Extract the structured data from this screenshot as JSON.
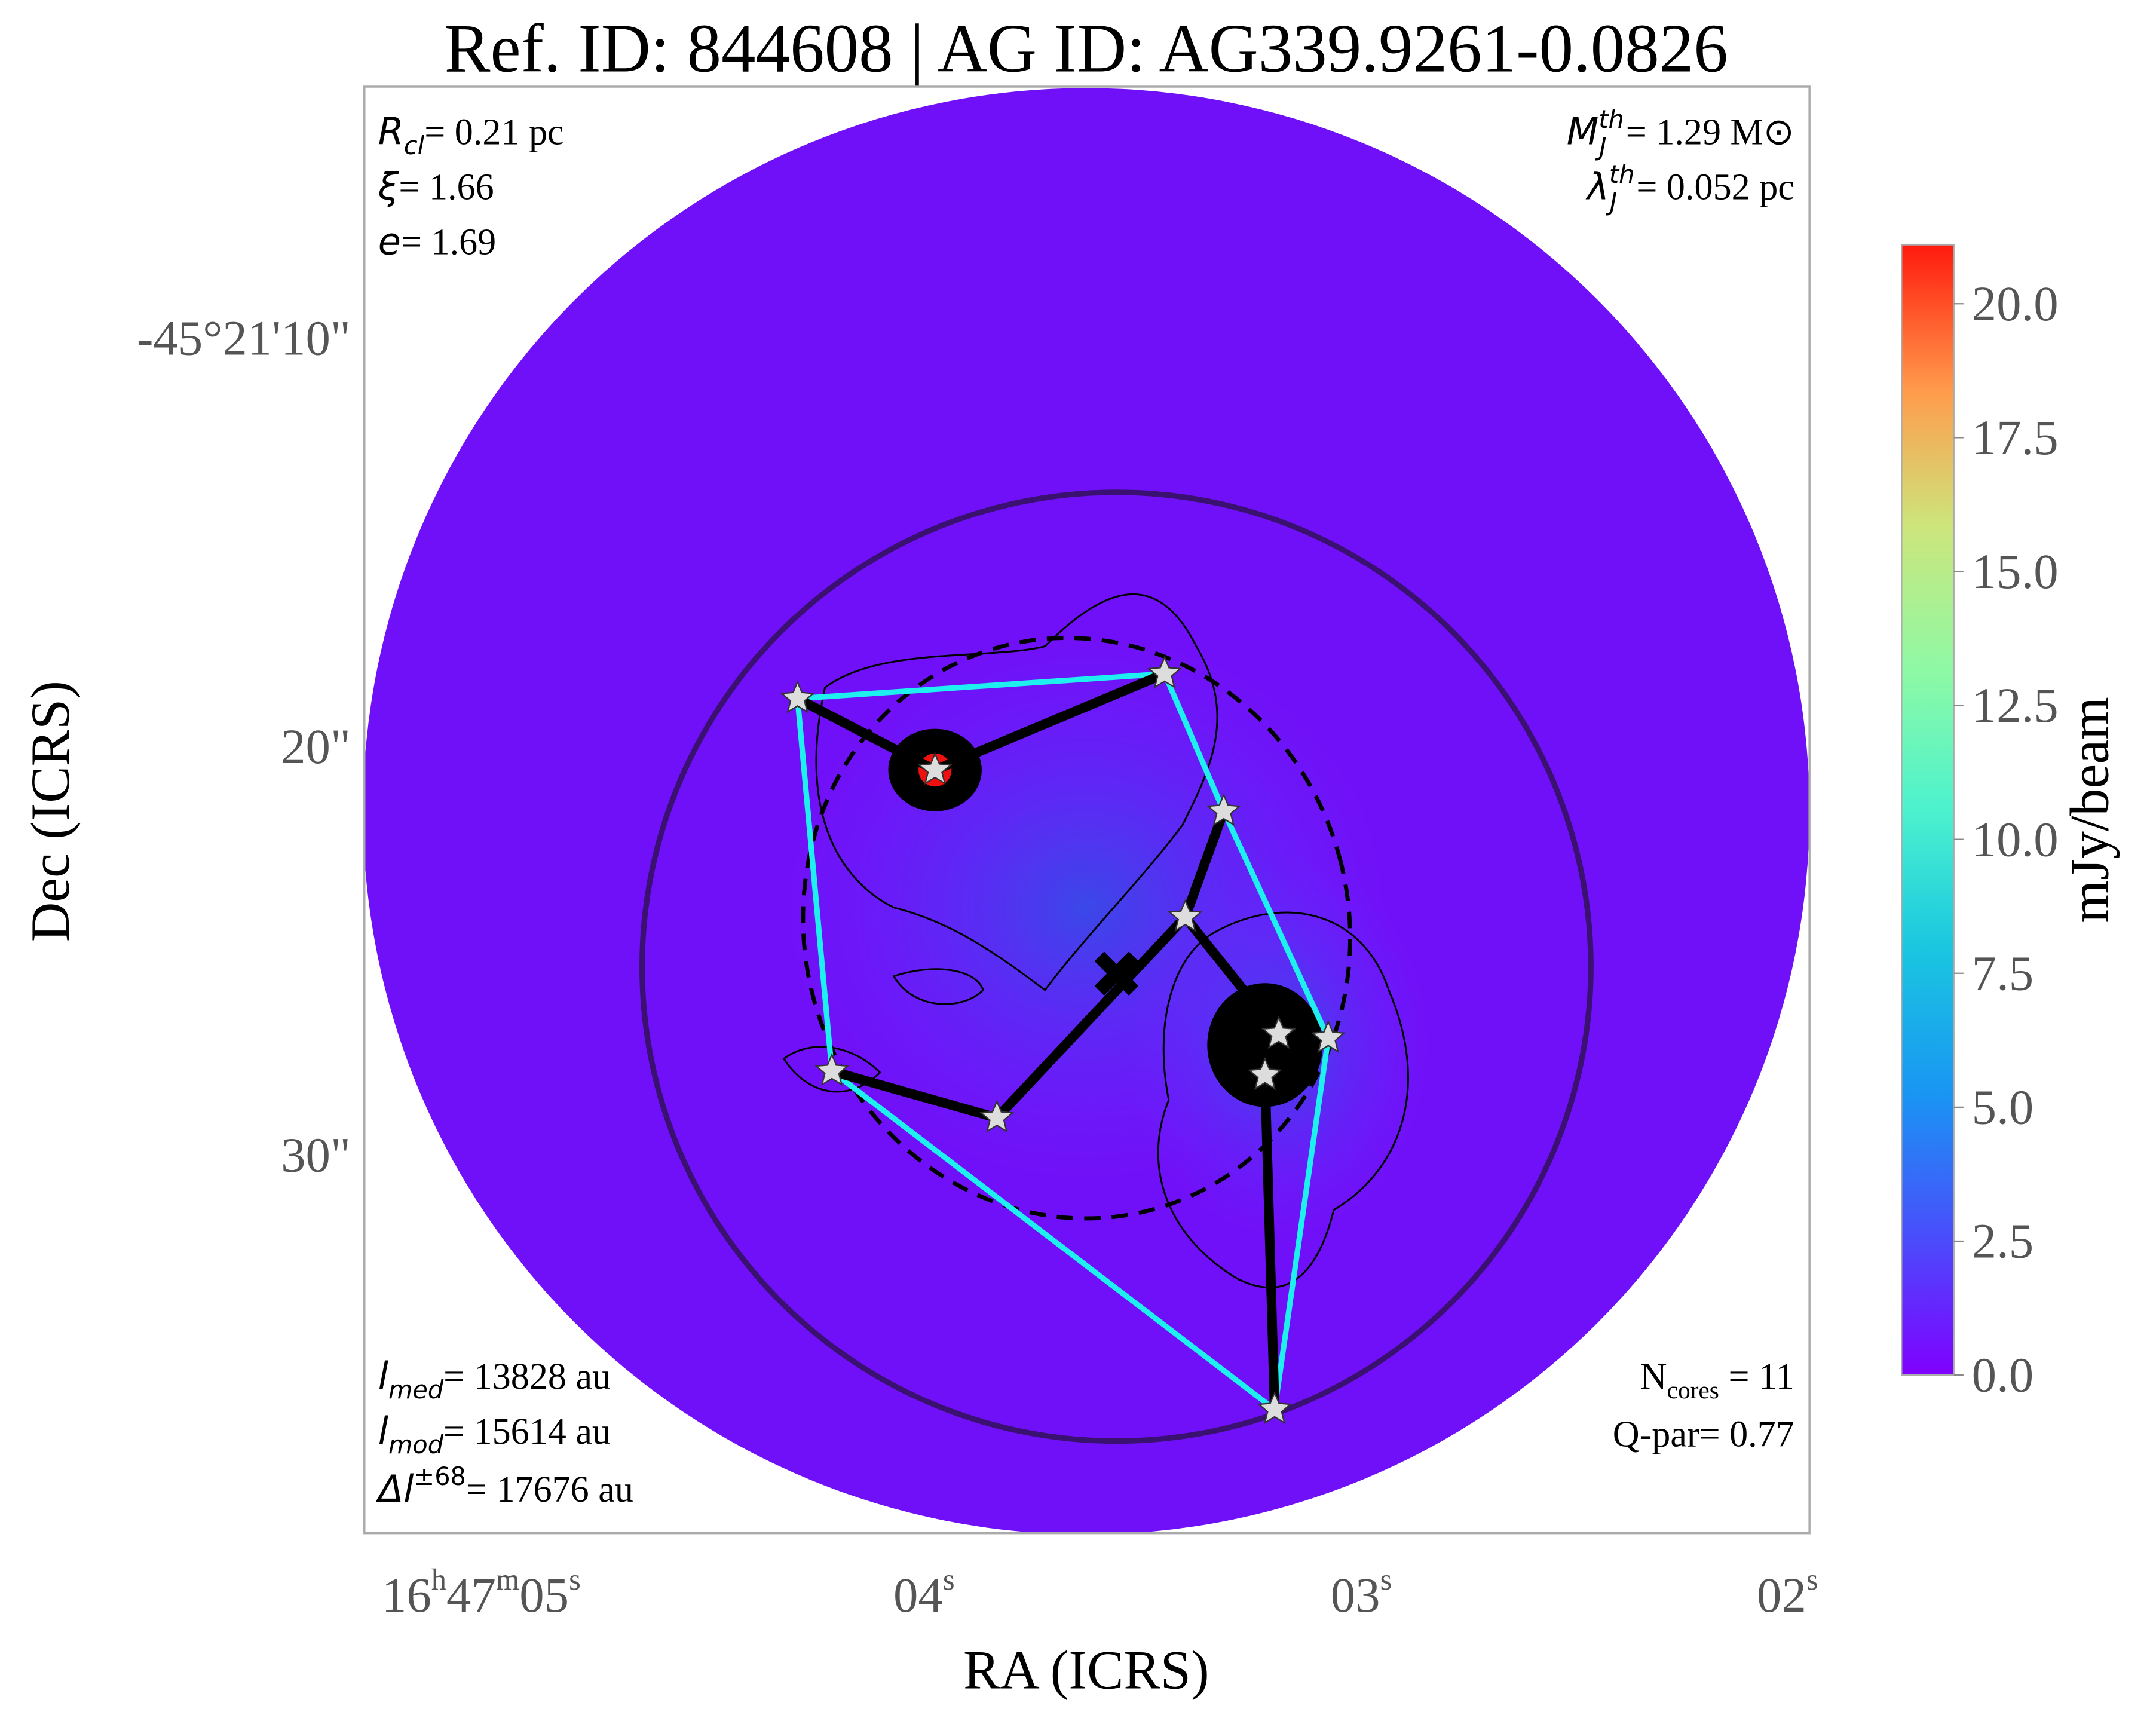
{
  "chart_data": {
    "type": "image",
    "title": "Ref. ID: 844608 | AG ID: AG339.9261-0.0826",
    "xlabel": "RA (ICRS)",
    "ylabel": "Dec (ICRS)",
    "xticklabels": [
      [
        "16",
        "h",
        "47",
        "m",
        "05",
        "s"
      ],
      [
        "04",
        "s"
      ],
      [
        "03",
        "s"
      ],
      [
        "02",
        "s"
      ]
    ],
    "yticklabels": [
      "-45°21'10\"",
      "20\"",
      "30\""
    ],
    "stats_left_top": [
      {
        "sym": "R",
        "sub": "cl",
        "rest": "= 0.21 pc"
      },
      {
        "sym": "ξ",
        "rest": "= 1.66"
      },
      {
        "sym": "e",
        "rest": "= 1.69"
      }
    ],
    "stats_right_top": [
      {
        "sym": "M",
        "sub": "J",
        "sup": "th",
        "rest": "= 1.29 M⊙"
      },
      {
        "sym": "λ",
        "sub": "J",
        "sup": "th",
        "rest": "= 0.052 pc"
      }
    ],
    "stats_left_bottom": [
      {
        "sym": "l",
        "sub": "med",
        "rest": "= 13828 au"
      },
      {
        "sym": "l",
        "sub": "mod",
        "rest": "= 15614 au"
      },
      {
        "sym": "Δl",
        "sup": "±68",
        "rest": "= 17676 au"
      }
    ],
    "stats_right_bottom": [
      {
        "text": "N",
        "sub": "cores",
        "rest": " = 11"
      },
      {
        "rest": "Q-par= 0.77"
      }
    ],
    "colorbar": {
      "label": "mJy/beam",
      "lim": [
        0,
        21.1
      ],
      "ticks": [
        {
          "value": 0,
          "label": "0.0"
        },
        2.5,
        {
          "value": 5,
          "label": "5.0"
        },
        7.5,
        {
          "value": 10,
          "label": "10.0"
        },
        12.5,
        {
          "value": 15,
          "label": "15.0"
        },
        17.5,
        {
          "value": 20,
          "label": "20.0"
        }
      ]
    }
  }
}
